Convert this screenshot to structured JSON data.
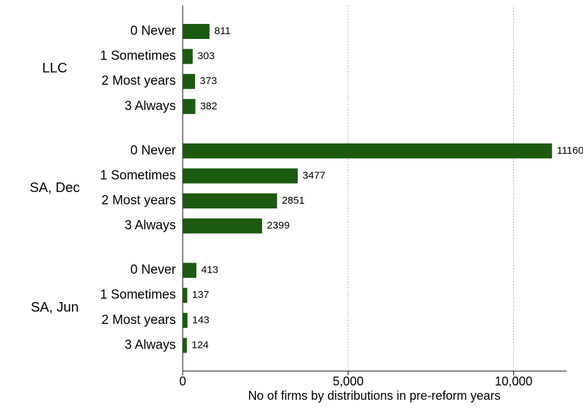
{
  "chart_data": {
    "type": "grouped-hbar",
    "x_label": "No of firms by distributions in pre-reform years",
    "color": "#1c5a10",
    "groups": [
      {
        "name": "LLC",
        "categories": [
          "0 Never",
          "1 Sometimes",
          "2 Most years",
          "3 Always"
        ],
        "values": [
          811,
          303,
          373,
          382
        ]
      },
      {
        "name": "SA, Dec",
        "categories": [
          "0 Never",
          "1 Sometimes",
          "2 Most years",
          "3 Always"
        ],
        "values": [
          11160,
          3477,
          2851,
          2399
        ]
      },
      {
        "name": "SA, Jun",
        "categories": [
          "0 Never",
          "1 Sometimes",
          "2 Most years",
          "3 Always"
        ],
        "values": [
          413,
          137,
          143,
          124
        ]
      }
    ],
    "xlim": [
      0,
      11600
    ],
    "xticks": [
      0,
      {
        "value": 5000,
        "label": "5,000"
      },
      {
        "value": 10000,
        "label": "10,000"
      }
    ],
    "grid": true
  }
}
